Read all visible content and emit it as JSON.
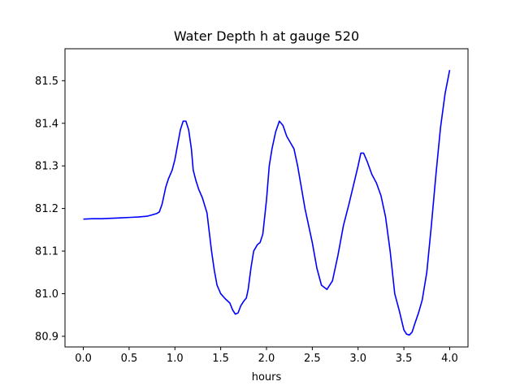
{
  "chart_data": {
    "type": "line",
    "title": "Water Depth h at gauge 520",
    "xlabel": "hours",
    "ylabel": "",
    "xlim": [
      -0.2,
      4.2
    ],
    "ylim": [
      80.875,
      81.575
    ],
    "xticks": [
      0.0,
      0.5,
      1.0,
      1.5,
      2.0,
      2.5,
      3.0,
      3.5,
      4.0
    ],
    "xtick_labels": [
      "0.0",
      "0.5",
      "1.0",
      "1.5",
      "2.0",
      "2.5",
      "3.0",
      "3.5",
      "4.0"
    ],
    "yticks": [
      80.9,
      81.0,
      81.1,
      81.2,
      81.3,
      81.4,
      81.5
    ],
    "ytick_labels": [
      "80.9",
      "81.0",
      "81.1",
      "81.2",
      "81.3",
      "81.4",
      "81.5"
    ],
    "grid": false,
    "series": [
      {
        "color": "#0000ff",
        "x": [
          0.0,
          0.1,
          0.2,
          0.3,
          0.4,
          0.5,
          0.6,
          0.7,
          0.75,
          0.8,
          0.83,
          0.86,
          0.9,
          0.93,
          0.97,
          1.0,
          1.03,
          1.06,
          1.09,
          1.12,
          1.15,
          1.18,
          1.2,
          1.23,
          1.26,
          1.3,
          1.35,
          1.4,
          1.43,
          1.46,
          1.5,
          1.55,
          1.6,
          1.63,
          1.66,
          1.69,
          1.72,
          1.75,
          1.78,
          1.8,
          1.83,
          1.86,
          1.9,
          1.93,
          1.96,
          2.0,
          2.03,
          2.06,
          2.1,
          2.14,
          2.18,
          2.22,
          2.26,
          2.3,
          2.34,
          2.38,
          2.42,
          2.46,
          2.5,
          2.55,
          2.6,
          2.66,
          2.72,
          2.78,
          2.84,
          2.9,
          2.95,
          3.0,
          3.03,
          3.06,
          3.1,
          3.15,
          3.2,
          3.25,
          3.3,
          3.35,
          3.4,
          3.45,
          3.5,
          3.53,
          3.56,
          3.59,
          3.62,
          3.66,
          3.7,
          3.75,
          3.8,
          3.85,
          3.9,
          3.95,
          4.0
        ],
        "y": [
          81.175,
          81.176,
          81.176,
          81.177,
          81.178,
          81.179,
          81.18,
          81.182,
          81.185,
          81.188,
          81.192,
          81.21,
          81.25,
          81.27,
          81.29,
          81.315,
          81.35,
          81.385,
          81.405,
          81.405,
          81.385,
          81.34,
          81.29,
          81.265,
          81.245,
          81.225,
          81.19,
          81.1,
          81.055,
          81.02,
          81.0,
          80.988,
          80.978,
          80.962,
          80.952,
          80.955,
          80.972,
          80.982,
          80.99,
          81.01,
          81.06,
          81.1,
          81.115,
          81.12,
          81.14,
          81.22,
          81.3,
          81.34,
          81.38,
          81.405,
          81.395,
          81.37,
          81.355,
          81.34,
          81.3,
          81.25,
          81.2,
          81.16,
          81.12,
          81.06,
          81.02,
          81.01,
          81.03,
          81.09,
          81.16,
          81.21,
          81.255,
          81.3,
          81.33,
          81.33,
          81.31,
          81.28,
          81.26,
          81.23,
          81.18,
          81.1,
          81.0,
          80.96,
          80.915,
          80.905,
          80.903,
          80.91,
          80.93,
          80.955,
          80.985,
          81.05,
          81.16,
          81.28,
          81.39,
          81.47,
          81.525
        ]
      }
    ]
  }
}
